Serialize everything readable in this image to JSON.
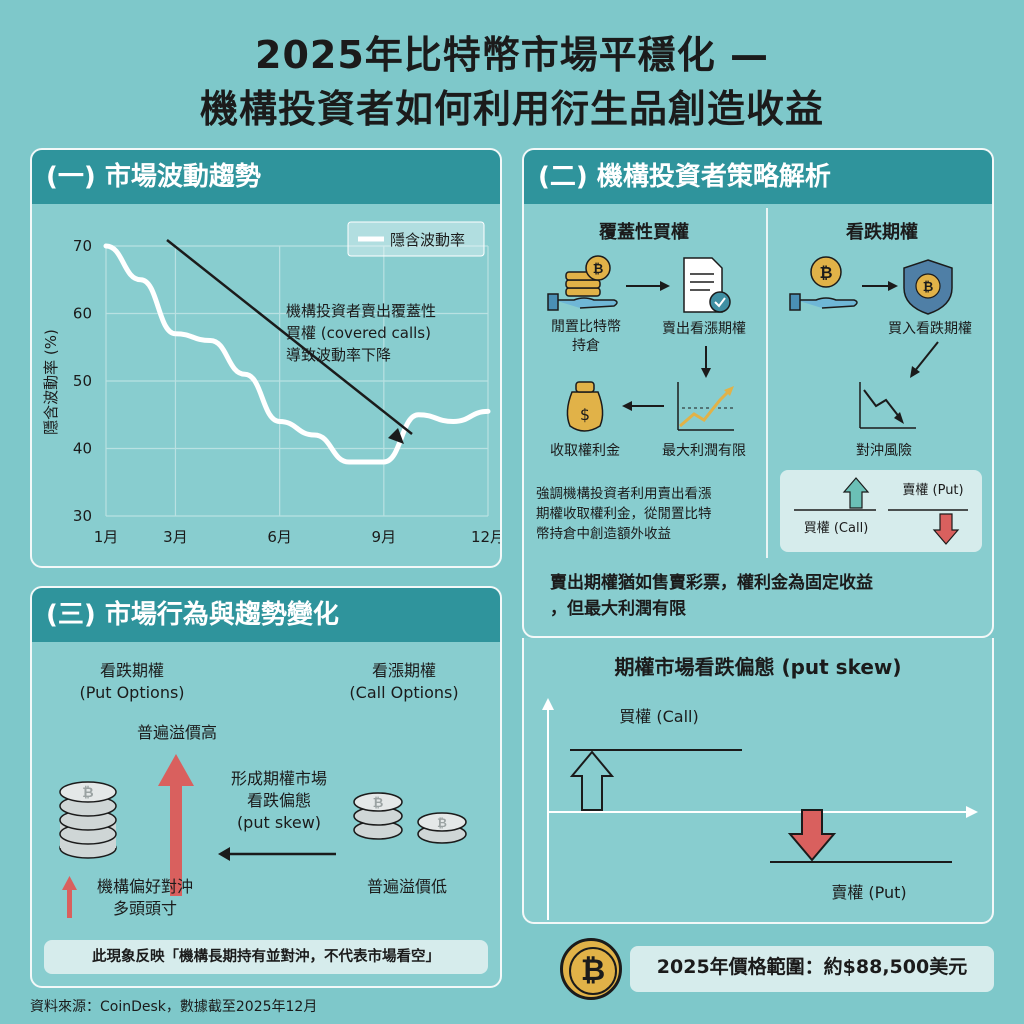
{
  "title": {
    "line1": "2025年比特幣市場平穩化 —",
    "line2": "機構投資者如何利用衍生品創造收益"
  },
  "panel1": {
    "header": "(一) 市場波動趨勢",
    "legend": "隱含波動率",
    "annotation": [
      "機構投資者賣出覆蓋性",
      "買權 (covered calls)",
      "導致波動率下降"
    ],
    "chart_data": {
      "type": "line",
      "ylabel": "隱含波動率 (%)",
      "yticks": [
        70,
        60,
        50,
        40,
        30
      ],
      "ylim": [
        30,
        70
      ],
      "xticks": [
        "1月",
        "3月",
        "6月",
        "9月",
        "12月"
      ],
      "series": [
        {
          "name": "隱含波動率",
          "x": [
            1,
            2,
            3,
            4,
            5,
            6,
            7,
            8,
            9,
            10,
            11,
            12
          ],
          "values": [
            70,
            65,
            57,
            56,
            51,
            44,
            42,
            38,
            38,
            45,
            44,
            45.5
          ]
        }
      ]
    }
  },
  "panel2": {
    "header": "(二) 機構投資者策略解析",
    "covered_call": {
      "title": "覆蓋性買權",
      "hold_label": [
        "閒置比特幣",
        "持倉"
      ],
      "sell_label": "賣出看漲期權",
      "premium_label": "收取權利金",
      "profit_label": "最大利潤有限",
      "note": [
        "強調機構投資者利用賣出看漲",
        "期權收取權利金，從閒置比特",
        "幣持倉中創造額外收益"
      ]
    },
    "put": {
      "title": "看跌期權",
      "buy_label": "買入看跌期權",
      "hedge_label": "對沖風險",
      "call_label": "買權 (Call)",
      "put_label": "賣權 (Put)"
    },
    "summary": [
      "賣出期權猶如售賣彩票，權利金為固定收益",
      "，但最大利潤有限"
    ]
  },
  "panel3": {
    "header": "(三) 市場行為與趨勢變化",
    "put_title": [
      "看跌期權",
      "(Put Options)"
    ],
    "call_title": [
      "看漲期權",
      "(Call Options)"
    ],
    "high_premium": "普遍溢價高",
    "skew_label": [
      "形成期權市場",
      "看跌偏態",
      "(put skew)"
    ],
    "low_premium": "普遍溢價低",
    "hedge_pref": [
      "機構偏好對沖",
      "多頭頭寸"
    ],
    "conclusion": "此現象反映「機構長期持有並對沖，不代表市場看空」"
  },
  "panel4": {
    "title": "期權市場看跌偏態 (put skew)",
    "call_label": "買權 (Call)",
    "put_label": "賣權 (Put)"
  },
  "price_range": "2025年價格範圍：約$88,500美元",
  "source": "資料來源：CoinDesk，數據截至2025年12月",
  "colors": {
    "background": "#7ec8ca",
    "header": "#2f949c",
    "gold": "#e1b248",
    "red_arrow": "#d9605e",
    "green_arrow": "#6bc0b6"
  }
}
